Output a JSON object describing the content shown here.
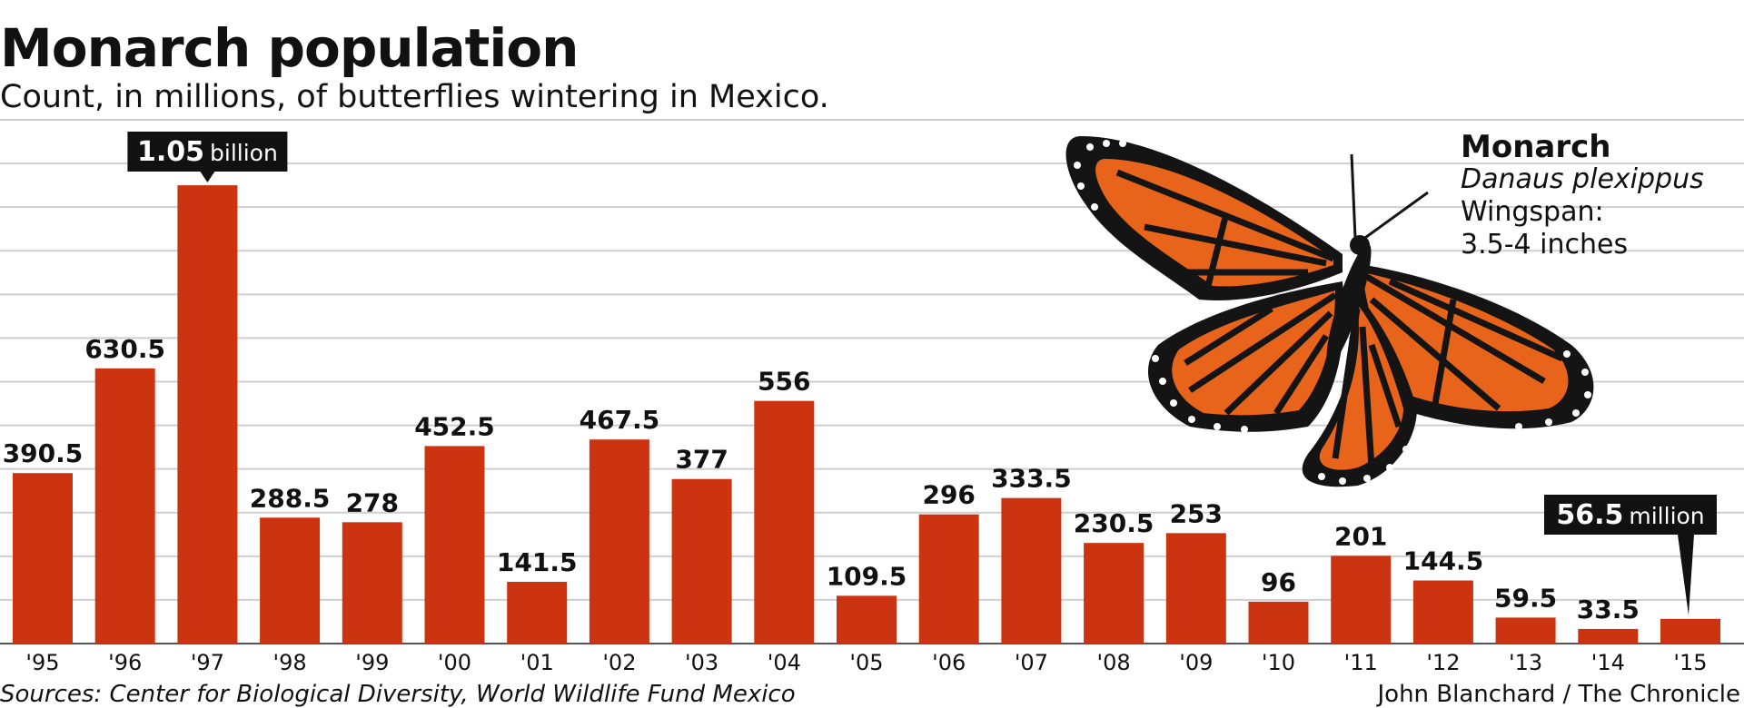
{
  "header": {
    "title": "Monarch population",
    "subtitle": "Count, in millions, of butterflies wintering in Mexico."
  },
  "info_box": {
    "name": "Monarch",
    "scientific_name": "Danaus plexippus",
    "wingspan_label": "Wingspan:",
    "wingspan_value": "3.5-4 inches"
  },
  "footer": {
    "sources": "Sources: Center for Biological Diversity, World Wildlife Fund Mexico",
    "credit": "John Blanchard / The Chronicle"
  },
  "colors": {
    "bar": "#cc3311",
    "grid": "#cfcfcf",
    "callout_bg": "#111111",
    "butterfly_orange": "#e8641a",
    "butterfly_black": "#141414"
  },
  "chart_data": {
    "type": "bar",
    "categories": [
      "'95",
      "'96",
      "'97",
      "'98",
      "'99",
      "'00",
      "'01",
      "'02",
      "'03",
      "'04",
      "'05",
      "'06",
      "'07",
      "'08",
      "'09",
      "'10",
      "'11",
      "'12",
      "'13",
      "'14",
      "'15"
    ],
    "values": [
      390.5,
      630.5,
      1050,
      288.5,
      278,
      452.5,
      141.5,
      467.5,
      377,
      556,
      109.5,
      296,
      333.5,
      230.5,
      253,
      96,
      201,
      144.5,
      59.5,
      33.5,
      56.5
    ],
    "data_labels": [
      "390.5",
      "630.5",
      "",
      "288.5",
      "278",
      "452.5",
      "141.5",
      "467.5",
      "377",
      "556",
      "109.5",
      "296",
      "333.5",
      "230.5",
      "253",
      "96",
      "201",
      "144.5",
      "59.5",
      "33.5",
      ""
    ],
    "callouts": [
      {
        "category": "'97",
        "value_text": "1.05",
        "unit_text": "billion"
      },
      {
        "category": "'15",
        "value_text": "56.5",
        "unit_text": "million"
      }
    ],
    "ylim": [
      0,
      1200
    ],
    "grid": true
  }
}
